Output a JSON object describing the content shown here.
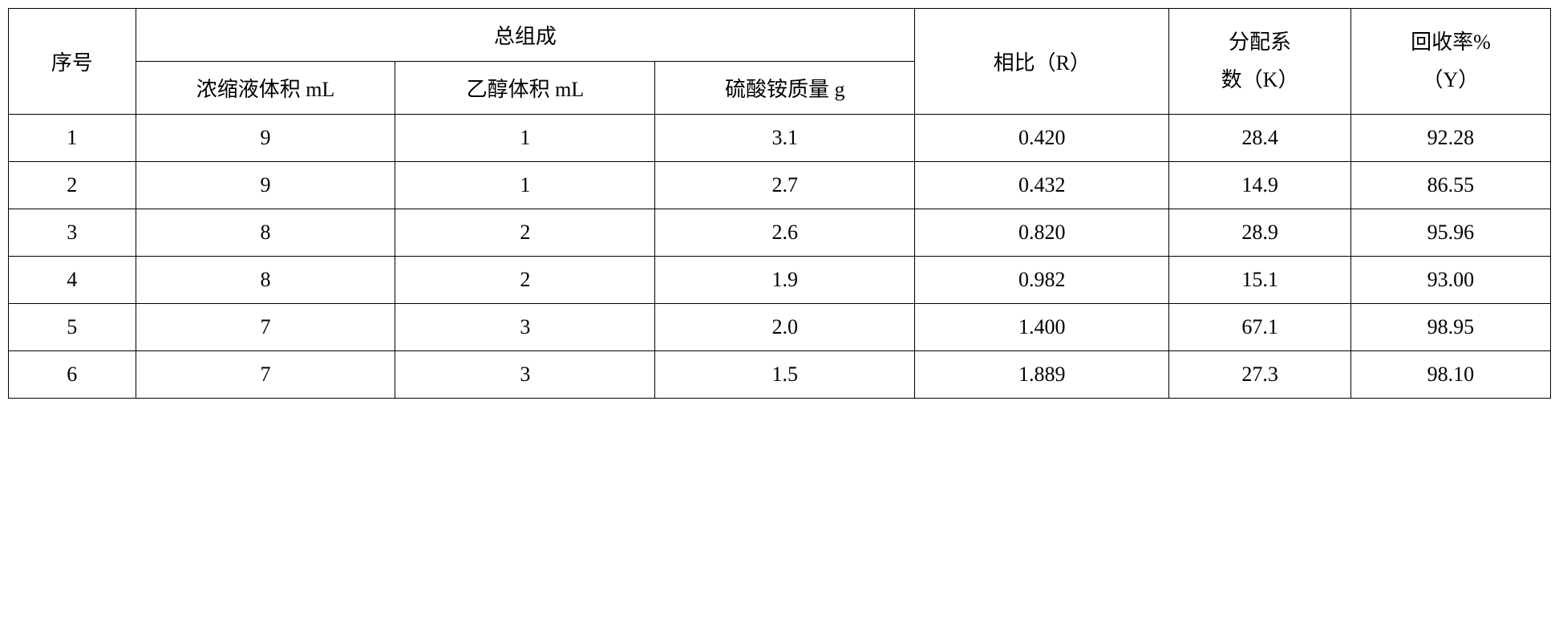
{
  "table": {
    "headers": {
      "seq": "序号",
      "composition": "总组成",
      "sub1": "浓缩液体积 mL",
      "sub2": "乙醇体积 mL",
      "sub3": "硫酸铵质量 g",
      "ratio": "相比（R）",
      "coeff_line1": "分配系",
      "coeff_line2": "数（K）",
      "recovery_line1": "回收率%",
      "recovery_line2": "（Y）"
    },
    "rows": [
      {
        "seq": "1",
        "c1": "9",
        "c2": "1",
        "c3": "3.1",
        "r": "0.420",
        "k": "28.4",
        "y": "92.28"
      },
      {
        "seq": "2",
        "c1": "9",
        "c2": "1",
        "c3": "2.7",
        "r": "0.432",
        "k": "14.9",
        "y": "86.55"
      },
      {
        "seq": "3",
        "c1": "8",
        "c2": "2",
        "c3": "2.6",
        "r": "0.820",
        "k": "28.9",
        "y": "95.96"
      },
      {
        "seq": "4",
        "c1": "8",
        "c2": "2",
        "c3": "1.9",
        "r": "0.982",
        "k": "15.1",
        "y": "93.00"
      },
      {
        "seq": "5",
        "c1": "7",
        "c2": "3",
        "c3": "2.0",
        "r": "1.400",
        "k": "67.1",
        "y": "98.95"
      },
      {
        "seq": "6",
        "c1": "7",
        "c2": "3",
        "c3": "1.5",
        "r": "1.889",
        "k": "27.3",
        "y": "98.10"
      }
    ]
  }
}
